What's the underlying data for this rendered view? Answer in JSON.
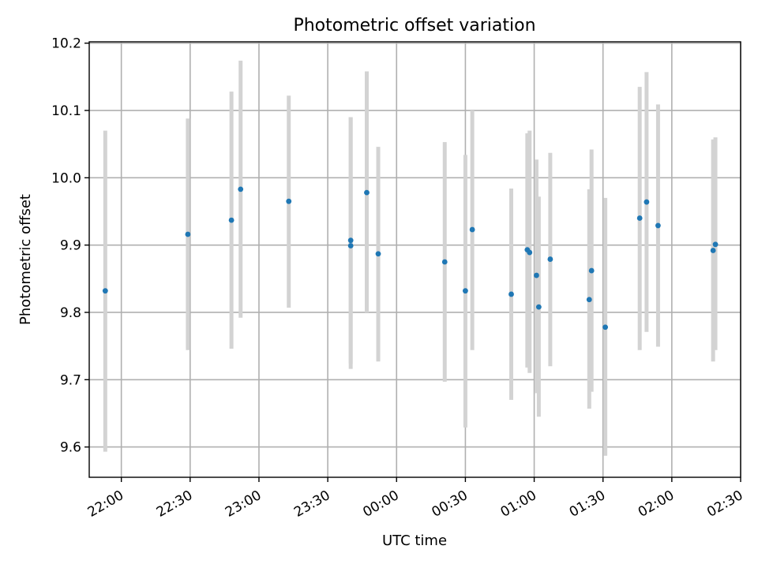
{
  "chart_data": {
    "type": "scatter",
    "title": "Photometric offset variation",
    "xlabel": "UTC time",
    "ylabel": "Photometric offset",
    "x_ticks": [
      "22:00",
      "22:30",
      "23:00",
      "23:30",
      "00:00",
      "00:30",
      "01:00",
      "01:30",
      "02:00",
      "02:30"
    ],
    "y_ticks": [
      "9.6",
      "9.7",
      "9.8",
      "9.9",
      "10.0",
      "10.1",
      "10.2"
    ],
    "xlim": [
      "21:46",
      "02:30"
    ],
    "ylim": [
      9.555,
      10.202
    ],
    "grid": true,
    "colors": {
      "points": "#1f77b4",
      "errorbars": "#d3d3d3",
      "grid": "#b0b0b0"
    },
    "points": [
      {
        "x": "21:53",
        "y": 9.832,
        "ymin": 9.593,
        "ymax": 10.07
      },
      {
        "x": "22:29",
        "y": 9.916,
        "ymin": 9.744,
        "ymax": 10.088
      },
      {
        "x": "22:48",
        "y": 9.937,
        "ymin": 9.746,
        "ymax": 10.128
      },
      {
        "x": "22:52",
        "y": 9.983,
        "ymin": 9.792,
        "ymax": 10.174
      },
      {
        "x": "23:13",
        "y": 9.965,
        "ymin": 9.807,
        "ymax": 10.122
      },
      {
        "x": "23:40",
        "y": 9.899,
        "ymin": 9.716,
        "ymax": 10.09
      },
      {
        "x": "23:40",
        "y": 9.907,
        "ymin": 9.724,
        "ymax": 10.09
      },
      {
        "x": "23:47",
        "y": 9.978,
        "ymin": 9.8,
        "ymax": 10.158
      },
      {
        "x": "23:52",
        "y": 9.887,
        "ymin": 9.727,
        "ymax": 10.046
      },
      {
        "x": "00:21",
        "y": 9.875,
        "ymin": 9.697,
        "ymax": 10.053
      },
      {
        "x": "00:30",
        "y": 9.832,
        "ymin": 9.629,
        "ymax": 10.034
      },
      {
        "x": "00:33",
        "y": 9.923,
        "ymin": 9.744,
        "ymax": 10.1
      },
      {
        "x": "00:50",
        "y": 9.827,
        "ymin": 9.67,
        "ymax": 9.984
      },
      {
        "x": "00:57",
        "y": 9.893,
        "ymin": 9.718,
        "ymax": 10.066
      },
      {
        "x": "00:58",
        "y": 9.889,
        "ymin": 9.71,
        "ymax": 10.07
      },
      {
        "x": "01:01",
        "y": 9.855,
        "ymin": 9.68,
        "ymax": 10.027
      },
      {
        "x": "01:02",
        "y": 9.808,
        "ymin": 9.645,
        "ymax": 9.972
      },
      {
        "x": "01:07",
        "y": 9.879,
        "ymin": 9.72,
        "ymax": 10.037
      },
      {
        "x": "01:24",
        "y": 9.819,
        "ymin": 9.657,
        "ymax": 9.983
      },
      {
        "x": "01:25",
        "y": 9.862,
        "ymin": 9.682,
        "ymax": 10.042
      },
      {
        "x": "01:31",
        "y": 9.778,
        "ymin": 9.587,
        "ymax": 9.97
      },
      {
        "x": "01:46",
        "y": 9.94,
        "ymin": 9.744,
        "ymax": 10.135
      },
      {
        "x": "01:49",
        "y": 9.964,
        "ymin": 9.771,
        "ymax": 10.157
      },
      {
        "x": "01:54",
        "y": 9.929,
        "ymin": 9.749,
        "ymax": 10.109
      },
      {
        "x": "02:18",
        "y": 9.892,
        "ymin": 9.727,
        "ymax": 10.057
      },
      {
        "x": "02:19",
        "y": 9.901,
        "ymin": 9.744,
        "ymax": 10.06
      }
    ]
  }
}
